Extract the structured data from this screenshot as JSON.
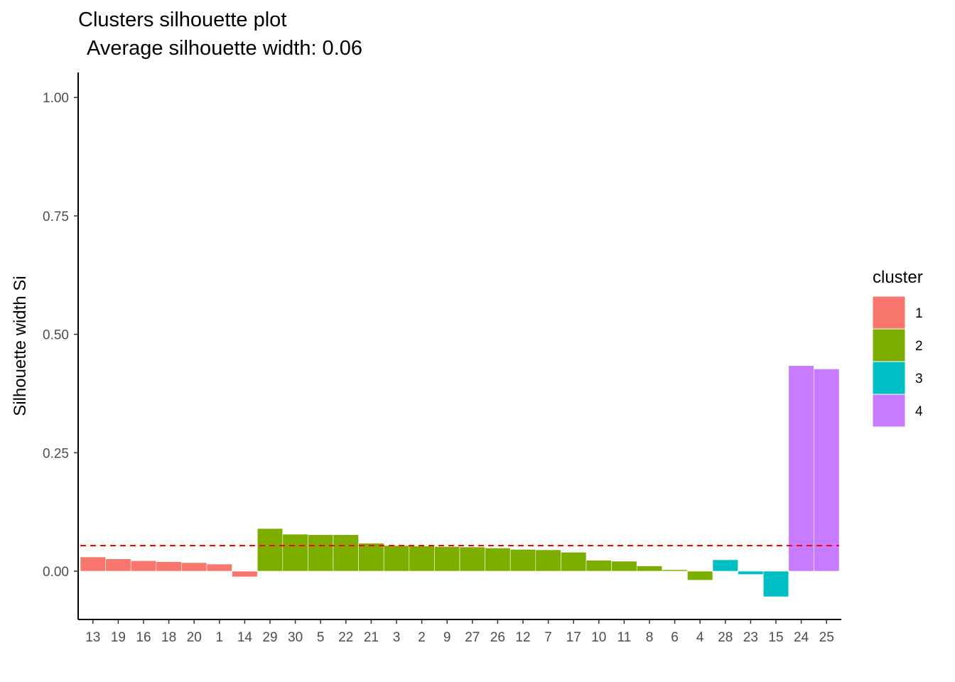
{
  "chart_data": {
    "type": "bar",
    "title": "Clusters silhouette plot",
    "subtitle": "Average silhouette width: 0.06",
    "xlabel": "",
    "ylabel": "Silhouette width Si",
    "ylim": [
      -0.1,
      1.05
    ],
    "yticks": [
      "0.00",
      "0.25",
      "0.50",
      "0.75",
      "1.00"
    ],
    "ytick_values": [
      0,
      0.25,
      0.5,
      0.75,
      1.0
    ],
    "average_line": 0.06,
    "average_line_color": "#ff0000",
    "grid": false,
    "legend_position": "right",
    "legend": {
      "title": "cluster",
      "entries": [
        {
          "label": "1",
          "color": "#f8766d"
        },
        {
          "label": "2",
          "color": "#7cae00"
        },
        {
          "label": "3",
          "color": "#00bfc4"
        },
        {
          "label": "4",
          "color": "#c77cff"
        }
      ]
    },
    "categories": [
      "13",
      "19",
      "16",
      "18",
      "20",
      "1",
      "14",
      "29",
      "30",
      "5",
      "22",
      "21",
      "3",
      "2",
      "9",
      "27",
      "26",
      "12",
      "7",
      "17",
      "10",
      "11",
      "8",
      "6",
      "4",
      "28",
      "23",
      "15",
      "24",
      "25"
    ],
    "clusters": [
      "1",
      "1",
      "1",
      "1",
      "1",
      "1",
      "1",
      "2",
      "2",
      "2",
      "2",
      "2",
      "2",
      "2",
      "2",
      "2",
      "2",
      "2",
      "2",
      "2",
      "2",
      "2",
      "2",
      "2",
      "2",
      "3",
      "3",
      "3",
      "4",
      "4"
    ],
    "values": [
      0.03,
      0.026,
      0.022,
      0.02,
      0.018,
      0.015,
      -0.012,
      0.09,
      0.078,
      0.077,
      0.077,
      0.059,
      0.054,
      0.053,
      0.052,
      0.051,
      0.049,
      0.046,
      0.045,
      0.04,
      0.023,
      0.021,
      0.011,
      0.003,
      -0.019,
      0.024,
      -0.007,
      -0.054,
      0.434,
      0.427
    ]
  }
}
